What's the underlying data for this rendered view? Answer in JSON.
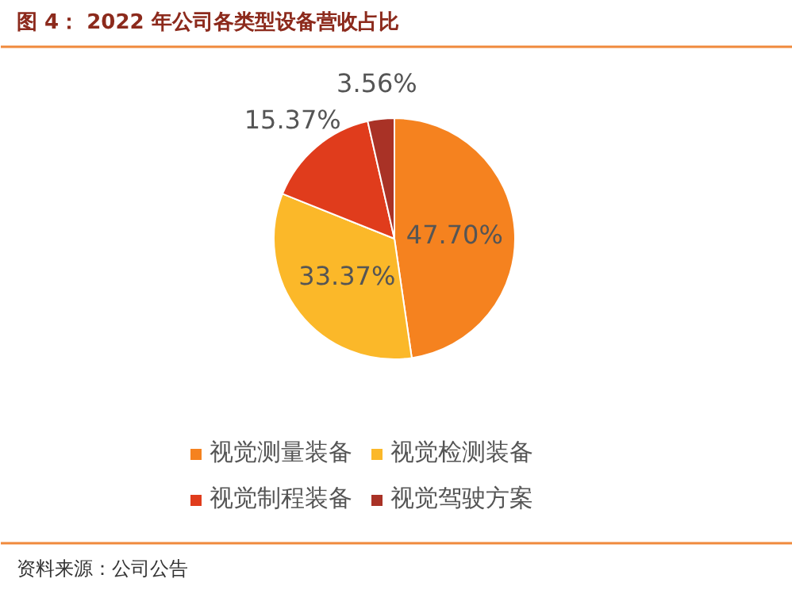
{
  "chart_data": {
    "type": "pie",
    "title": "图 4： 2022 年公司各类型设备营收占比",
    "categories": [
      "视觉测量装备",
      "视觉检测装备",
      "视觉制程装备",
      "视觉驾驶方案"
    ],
    "values": [
      47.7,
      33.37,
      15.37,
      3.56
    ],
    "colors": [
      "#f5821f",
      "#fbb829",
      "#e03c1c",
      "#a93226"
    ],
    "value_labels": [
      "47.70%",
      "33.37%",
      "15.37%",
      "3.56%"
    ],
    "legend": "bottom",
    "annotations": [
      "资料来源：公司公告"
    ]
  }
}
